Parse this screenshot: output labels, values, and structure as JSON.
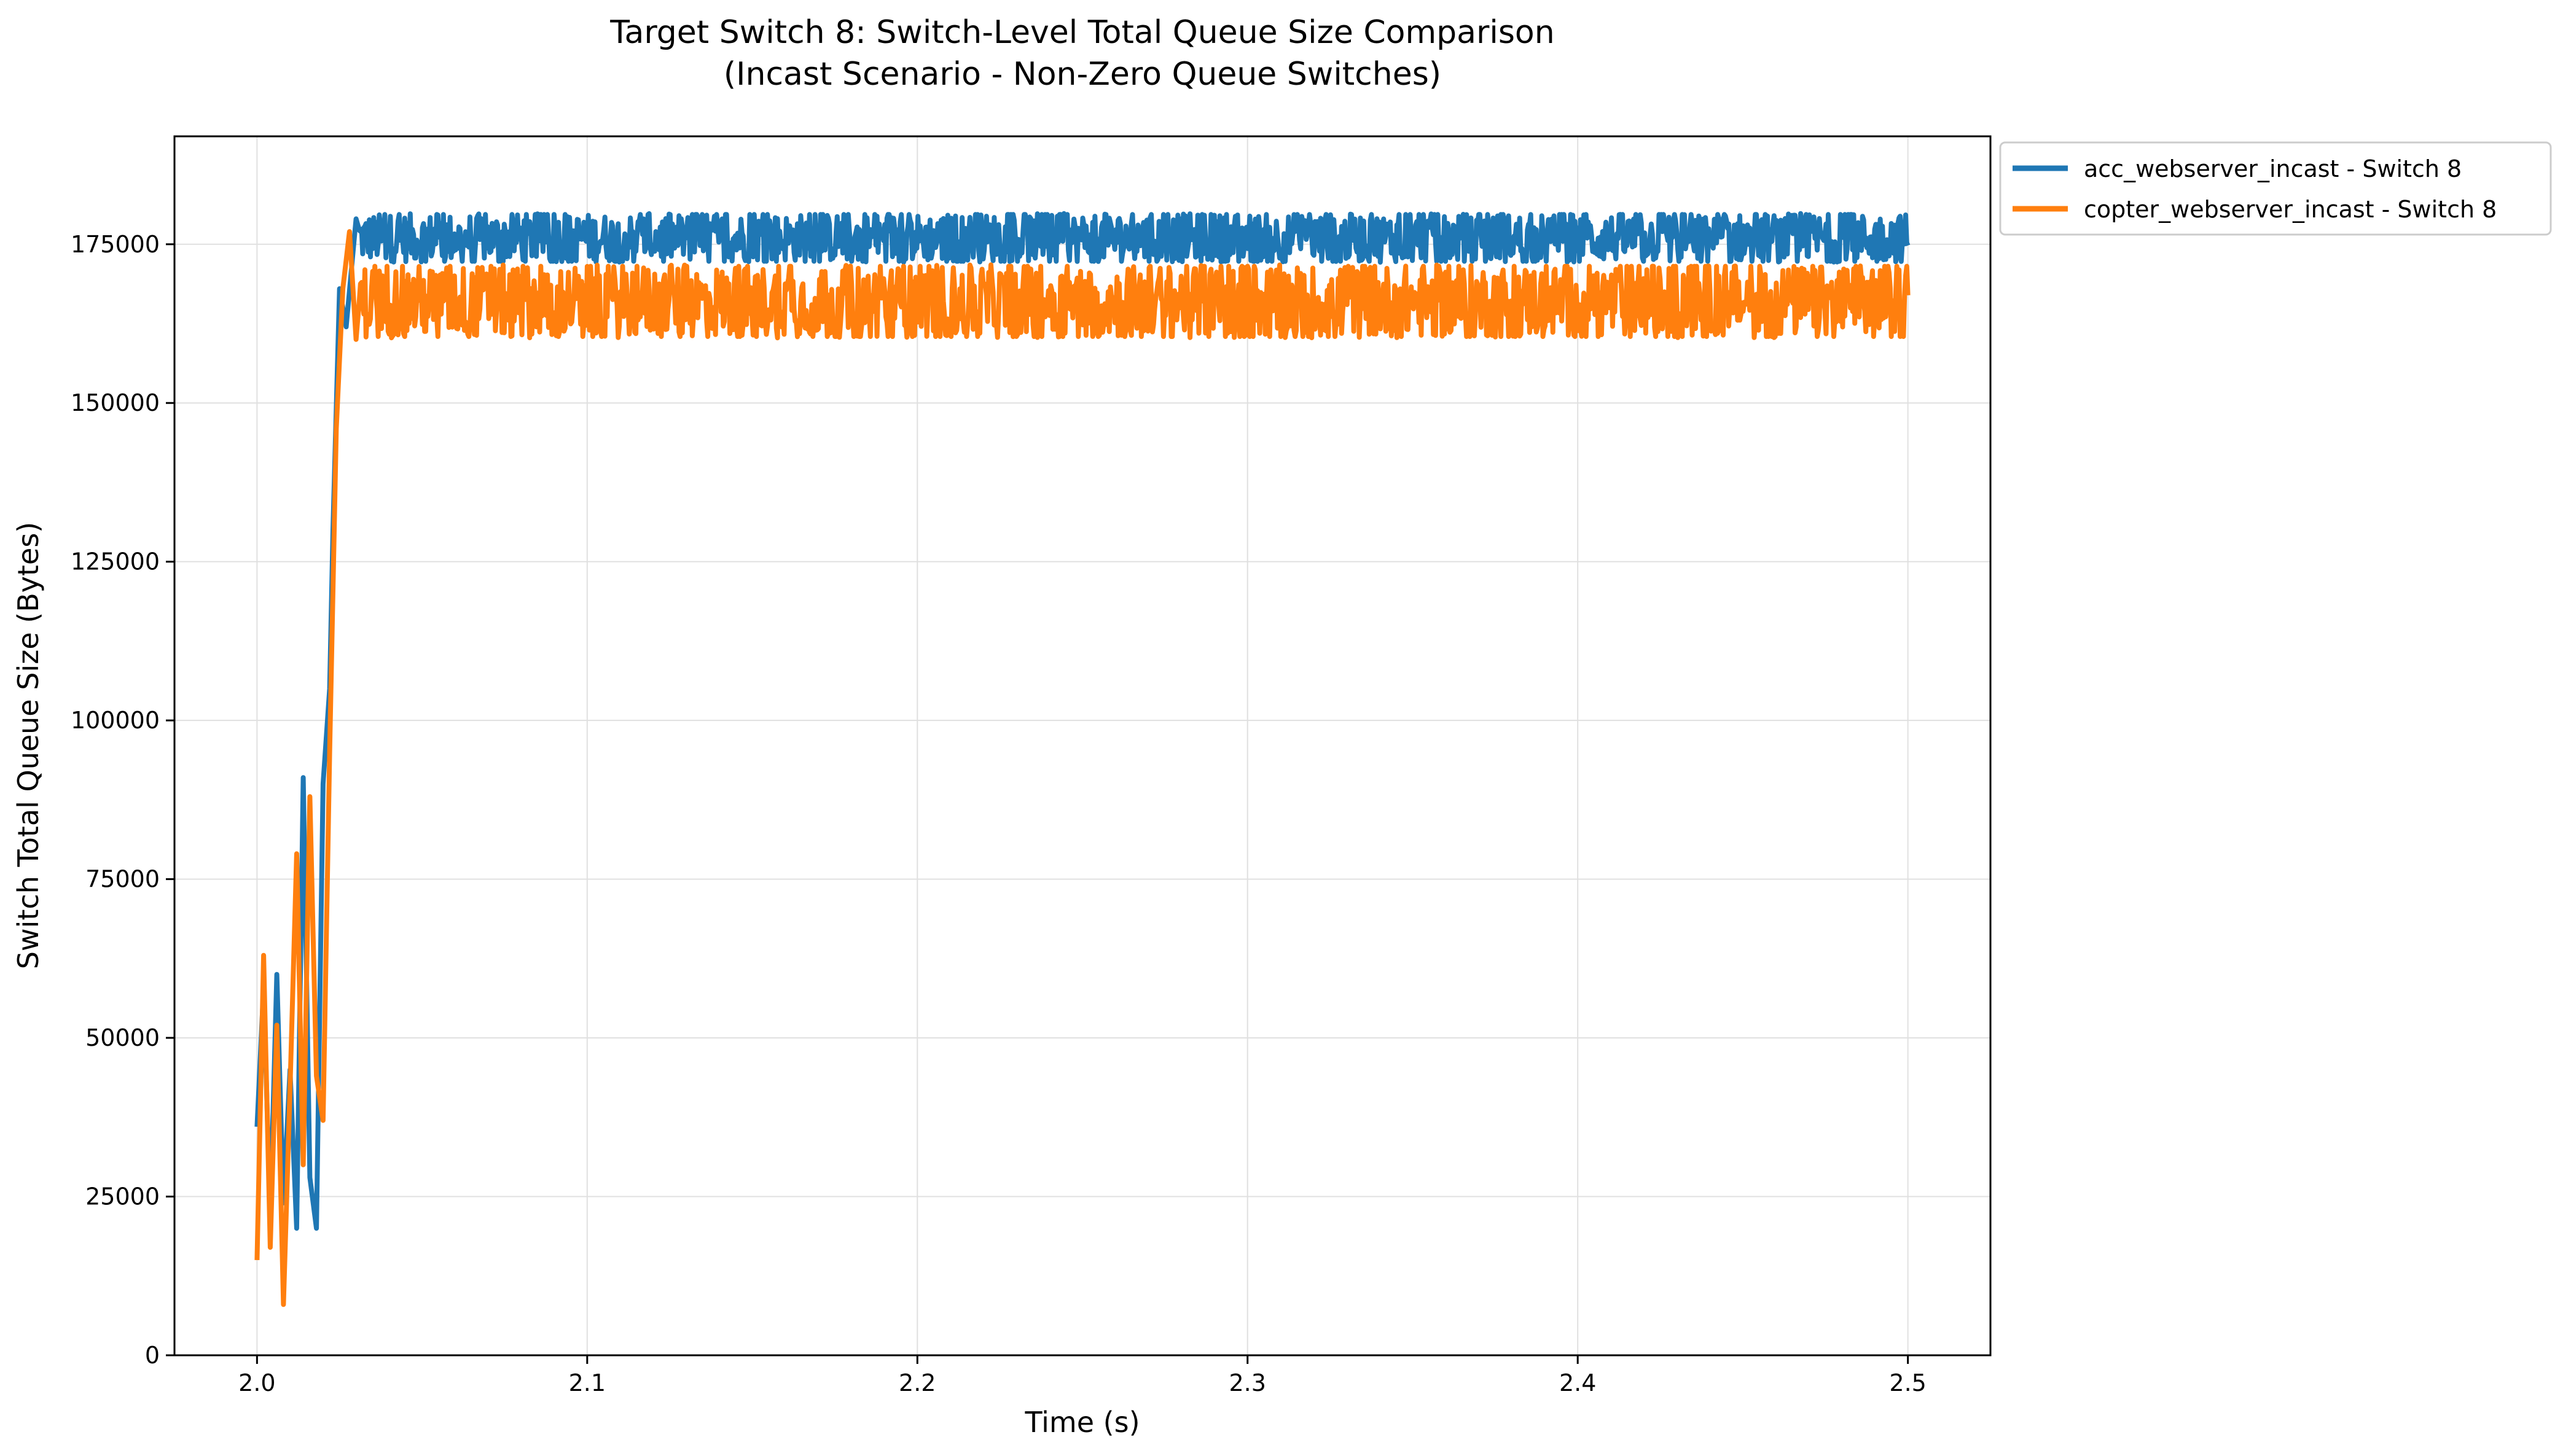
{
  "chart_data": {
    "type": "line",
    "title_line1": "Target Switch 8: Switch-Level Total Queue Size Comparison",
    "title_line2": "(Incast Scenario - Non-Zero Queue Switches)",
    "xlabel": "Time (s)",
    "ylabel": "Switch Total Queue Size (Bytes)",
    "xlim": [
      1.975,
      2.525
    ],
    "ylim": [
      0,
      192000
    ],
    "xticks": [
      2.0,
      2.1,
      2.2,
      2.3,
      2.4,
      2.5
    ],
    "xtick_labels": [
      "2.0",
      "2.1",
      "2.2",
      "2.3",
      "2.4",
      "2.5"
    ],
    "yticks": [
      0,
      25000,
      50000,
      75000,
      100000,
      125000,
      150000,
      175000
    ],
    "ytick_labels": [
      "0",
      "25000",
      "50000",
      "75000",
      "100000",
      "125000",
      "150000",
      "175000"
    ],
    "grid": true,
    "legend_position": "outside-top-right",
    "series": [
      {
        "name": "acc_webserver_incast - Switch 8",
        "color": "#1f77b4",
        "points": [
          [
            2.0,
            36000
          ],
          [
            2.002,
            58000
          ],
          [
            2.004,
            22000
          ],
          [
            2.006,
            60000
          ],
          [
            2.008,
            24000
          ],
          [
            2.01,
            45000
          ],
          [
            2.012,
            20000
          ],
          [
            2.014,
            91000
          ],
          [
            2.016,
            28000
          ],
          [
            2.018,
            20000
          ],
          [
            2.02,
            90000
          ],
          [
            2.022,
            105000
          ],
          [
            2.023,
            130000
          ],
          [
            2.025,
            168000
          ],
          [
            2.027,
            162000
          ],
          [
            2.03,
            179000
          ],
          [
            2.035,
            173000
          ],
          [
            2.05,
            176000
          ],
          [
            2.1,
            176000
          ],
          [
            2.2,
            176000
          ],
          [
            2.3,
            176000
          ],
          [
            2.4,
            176000
          ],
          [
            2.5,
            176000
          ]
        ],
        "band_after_2030": [
          170000,
          182000
        ]
      },
      {
        "name": "copter_webserver_incast - Switch 8",
        "color": "#ff7f0e",
        "points": [
          [
            2.0,
            15000
          ],
          [
            2.002,
            63000
          ],
          [
            2.004,
            17000
          ],
          [
            2.006,
            52000
          ],
          [
            2.008,
            8000
          ],
          [
            2.01,
            42000
          ],
          [
            2.012,
            79000
          ],
          [
            2.014,
            30000
          ],
          [
            2.016,
            88000
          ],
          [
            2.018,
            44000
          ],
          [
            2.02,
            37000
          ],
          [
            2.022,
            95000
          ],
          [
            2.024,
            146000
          ],
          [
            2.026,
            168000
          ],
          [
            2.028,
            177000
          ],
          [
            2.03,
            160000
          ],
          [
            2.05,
            166000
          ],
          [
            2.1,
            166000
          ],
          [
            2.2,
            166000
          ],
          [
            2.3,
            166000
          ],
          [
            2.4,
            166000
          ],
          [
            2.5,
            166000
          ]
        ],
        "band_after_2030": [
          157000,
          175000
        ]
      }
    ]
  }
}
